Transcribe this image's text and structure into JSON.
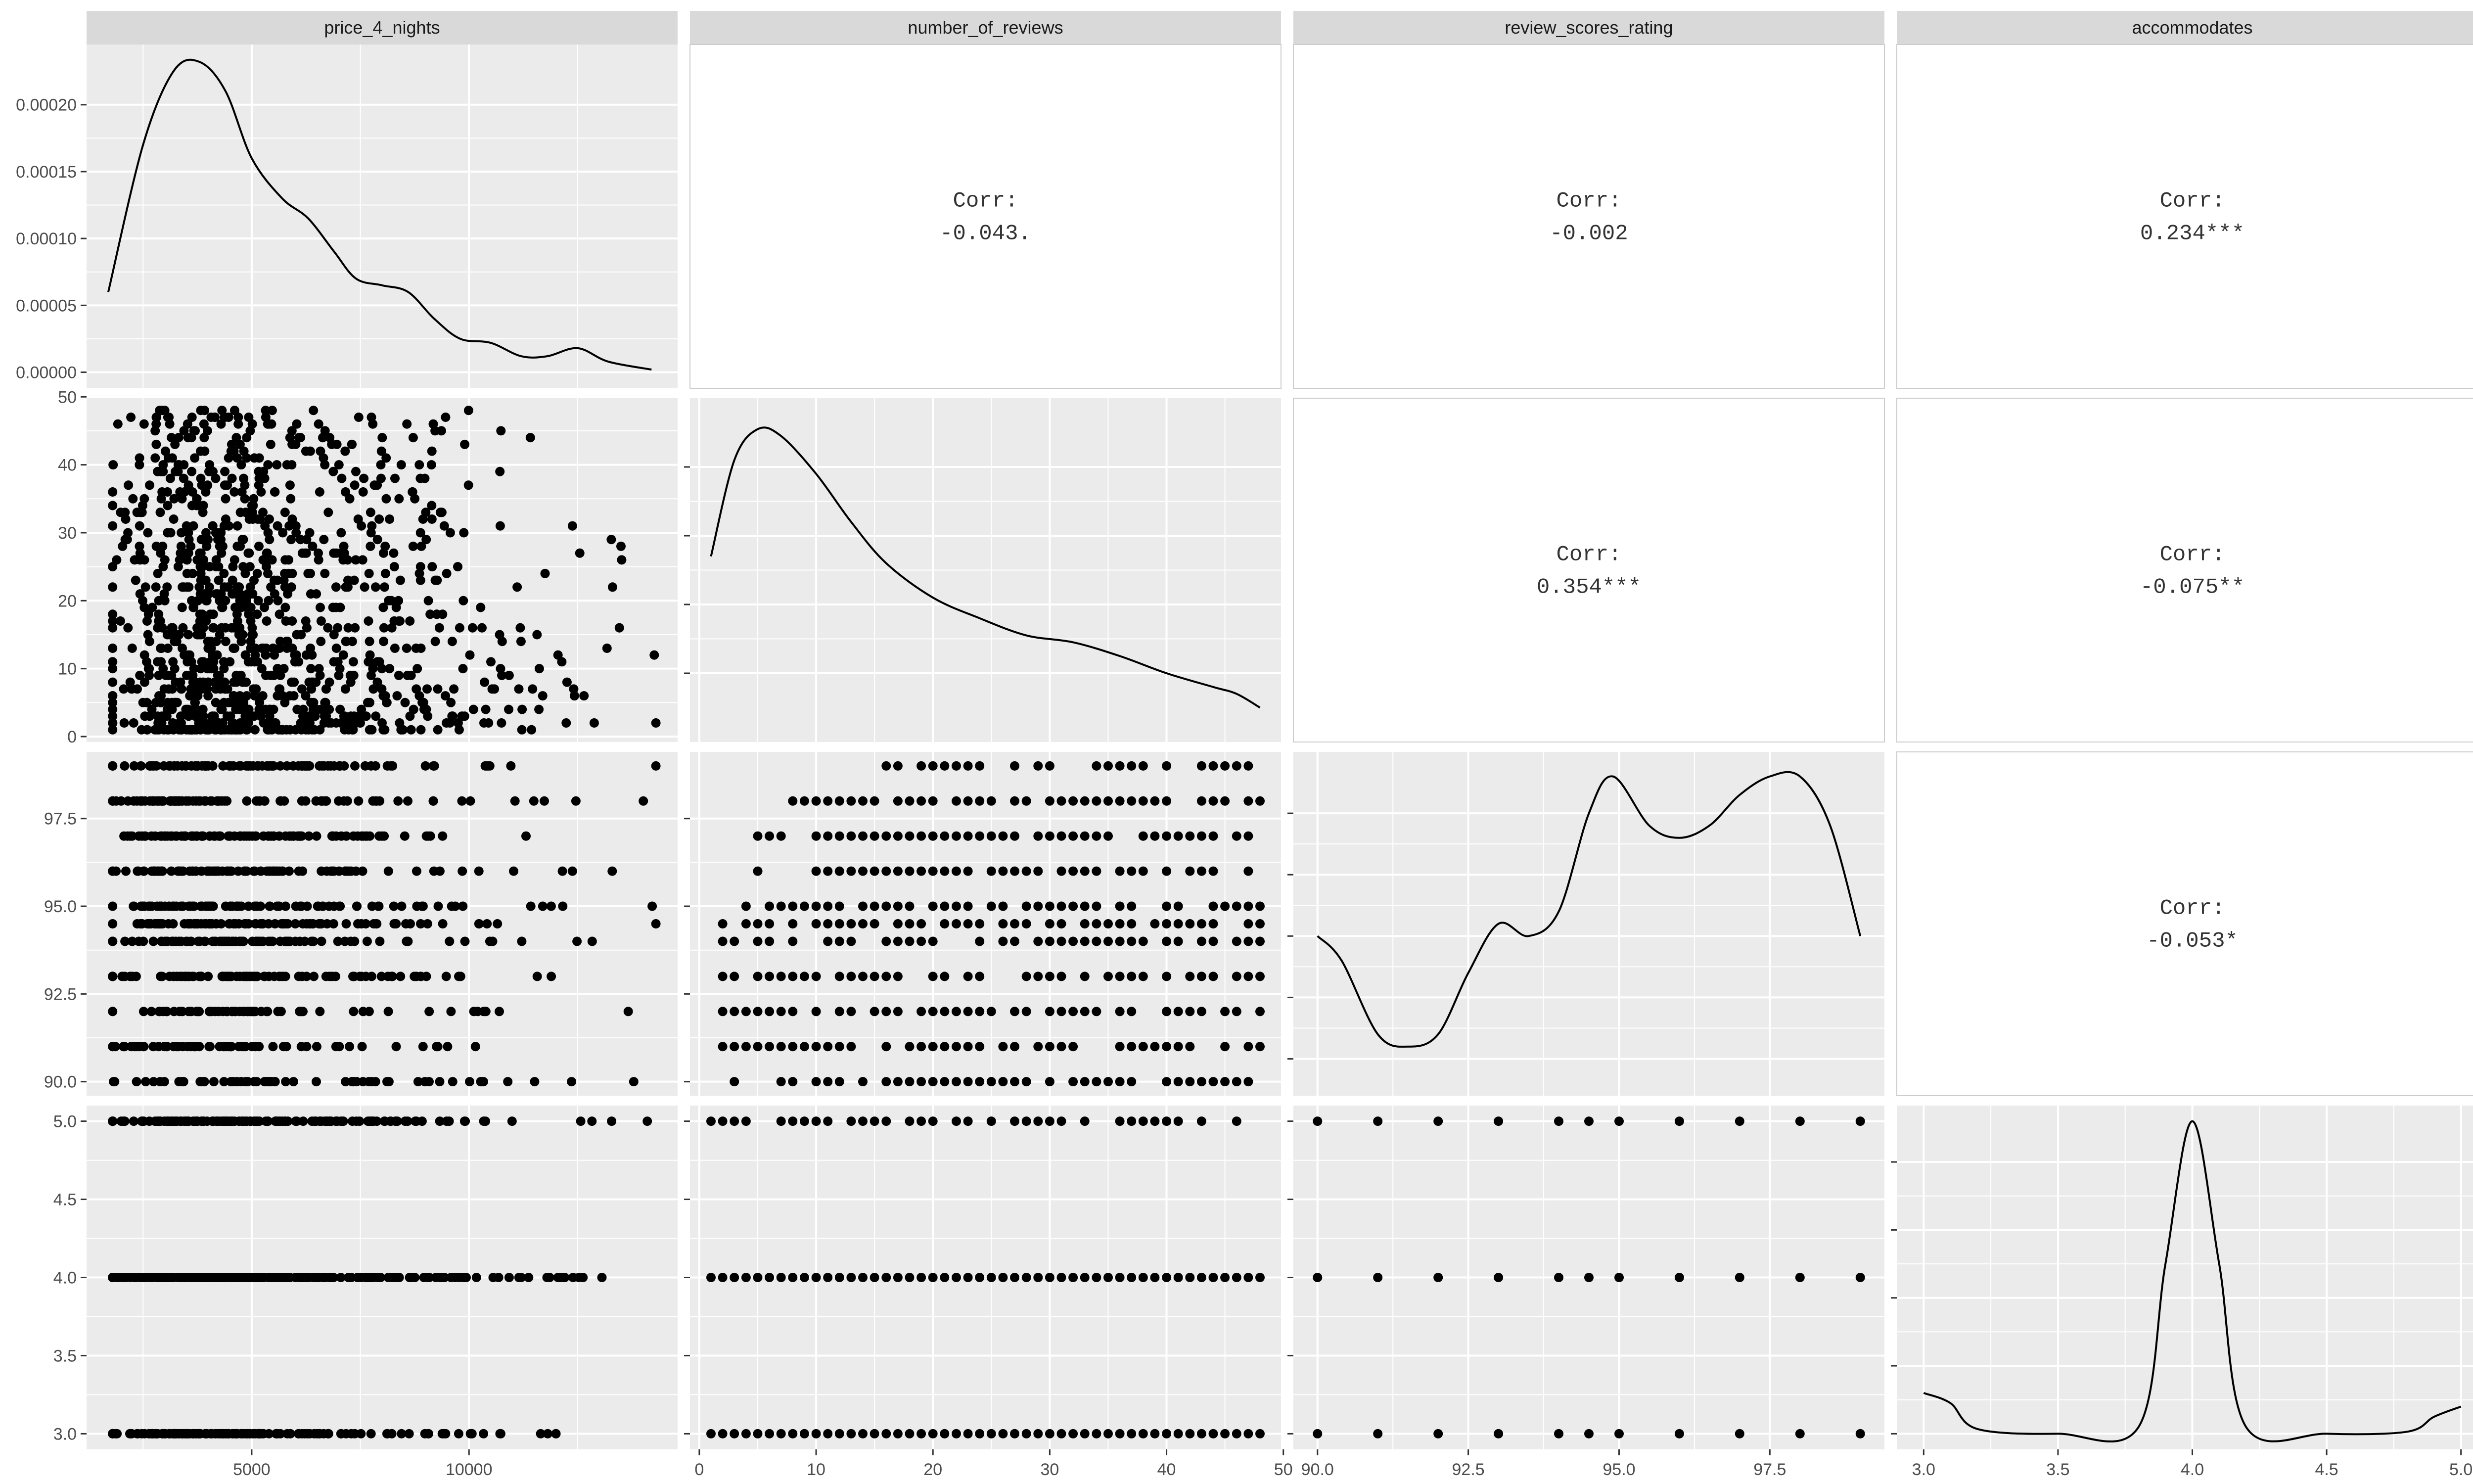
{
  "chart_data": {
    "type": "scatter",
    "layout": "pairs-matrix",
    "variables": [
      "price_4_nights",
      "number_of_reviews",
      "review_scores_rating",
      "accommodates"
    ],
    "x_ticks": {
      "price_4_nights": [
        "5000",
        "10000"
      ],
      "number_of_reviews": [
        "0",
        "10",
        "20",
        "30",
        "40",
        "50"
      ],
      "review_scores_rating": [
        "90.0",
        "92.5",
        "95.0",
        "97.5"
      ],
      "accommodates": [
        "3.0",
        "3.5",
        "4.0",
        "4.5",
        "5.0"
      ]
    },
    "y_ticks": {
      "price_4_nights": [
        "0.00000",
        "0.00005",
        "0.00010",
        "0.00015",
        "0.00020"
      ],
      "number_of_reviews": [
        "0",
        "10",
        "20",
        "30",
        "40",
        "50"
      ],
      "review_scores_rating": [
        "90.0",
        "92.5",
        "95.0",
        "97.5"
      ],
      "accommodates": [
        "3.0",
        "3.5",
        "4.0",
        "4.5",
        "5.0"
      ]
    },
    "correlations": [
      {
        "row": "price_4_nights",
        "col": "number_of_reviews",
        "label": "Corr:",
        "value": "-0.043."
      },
      {
        "row": "price_4_nights",
        "col": "review_scores_rating",
        "label": "Corr:",
        "value": "-0.002"
      },
      {
        "row": "price_4_nights",
        "col": "accommodates",
        "label": "Corr:",
        "value": "0.234***"
      },
      {
        "row": "number_of_reviews",
        "col": "review_scores_rating",
        "label": "Corr:",
        "value": "0.354***"
      },
      {
        "row": "number_of_reviews",
        "col": "accommodates",
        "label": "Corr:",
        "value": "-0.075**"
      },
      {
        "row": "review_scores_rating",
        "col": "accommodates",
        "label": "Corr:",
        "value": "-0.053*"
      }
    ],
    "densities": {
      "price_4_nights": [
        [
          1700,
          6e-05
        ],
        [
          2500,
          0.00017
        ],
        [
          3200,
          0.000225
        ],
        [
          3800,
          0.000232
        ],
        [
          4400,
          0.00021
        ],
        [
          5000,
          0.00016
        ],
        [
          5700,
          0.00013
        ],
        [
          6300,
          0.000115
        ],
        [
          6900,
          9e-05
        ],
        [
          7400,
          7e-05
        ],
        [
          8000,
          6.5e-05
        ],
        [
          8600,
          6e-05
        ],
        [
          9200,
          4e-05
        ],
        [
          9800,
          2.5e-05
        ],
        [
          10500,
          2.2e-05
        ],
        [
          11200,
          1.2e-05
        ],
        [
          11800,
          1.2e-05
        ],
        [
          12500,
          1.8e-05
        ],
        [
          13200,
          8e-06
        ],
        [
          14200,
          2e-06
        ]
      ],
      "number_of_reviews": [
        [
          1,
          0.27
        ],
        [
          3,
          0.41
        ],
        [
          5,
          0.455
        ],
        [
          7,
          0.445
        ],
        [
          10,
          0.39
        ],
        [
          13,
          0.32
        ],
        [
          16,
          0.26
        ],
        [
          20,
          0.21
        ],
        [
          24,
          0.18
        ],
        [
          28,
          0.155
        ],
        [
          32,
          0.145
        ],
        [
          36,
          0.125
        ],
        [
          40,
          0.1
        ],
        [
          44,
          0.08
        ],
        [
          46,
          0.07
        ],
        [
          48,
          0.05
        ]
      ],
      "review_scores_rating": [
        [
          90.0,
          0.95
        ],
        [
          90.4,
          0.93
        ],
        [
          91.0,
          0.87
        ],
        [
          91.5,
          0.86
        ],
        [
          92.0,
          0.87
        ],
        [
          92.5,
          0.92
        ],
        [
          93.0,
          0.96
        ],
        [
          93.5,
          0.95
        ],
        [
          94.0,
          0.97
        ],
        [
          94.5,
          1.05
        ],
        [
          94.9,
          1.08
        ],
        [
          95.5,
          1.04
        ],
        [
          96.0,
          1.03
        ],
        [
          96.5,
          1.04
        ],
        [
          97.0,
          1.065
        ],
        [
          97.5,
          1.08
        ],
        [
          98.0,
          1.08
        ],
        [
          98.5,
          1.04
        ],
        [
          99.0,
          0.95
        ]
      ],
      "accommodates": [
        [
          3.0,
          0.6
        ],
        [
          3.1,
          0.45
        ],
        [
          3.2,
          0.07
        ],
        [
          3.5,
          0.0
        ],
        [
          3.8,
          0.1
        ],
        [
          3.9,
          2.5
        ],
        [
          4.0,
          4.6
        ],
        [
          4.1,
          2.5
        ],
        [
          4.2,
          0.1
        ],
        [
          4.5,
          0.0
        ],
        [
          4.8,
          0.03
        ],
        [
          4.9,
          0.25
        ],
        [
          5.0,
          0.4
        ]
      ]
    },
    "accommodates_levels": [
      3,
      4,
      5
    ],
    "review_scores_levels": [
      90,
      91,
      92,
      93,
      94,
      94.5,
      95,
      96,
      97,
      98,
      99
    ],
    "title": "",
    "grid": true,
    "legend": "none"
  }
}
